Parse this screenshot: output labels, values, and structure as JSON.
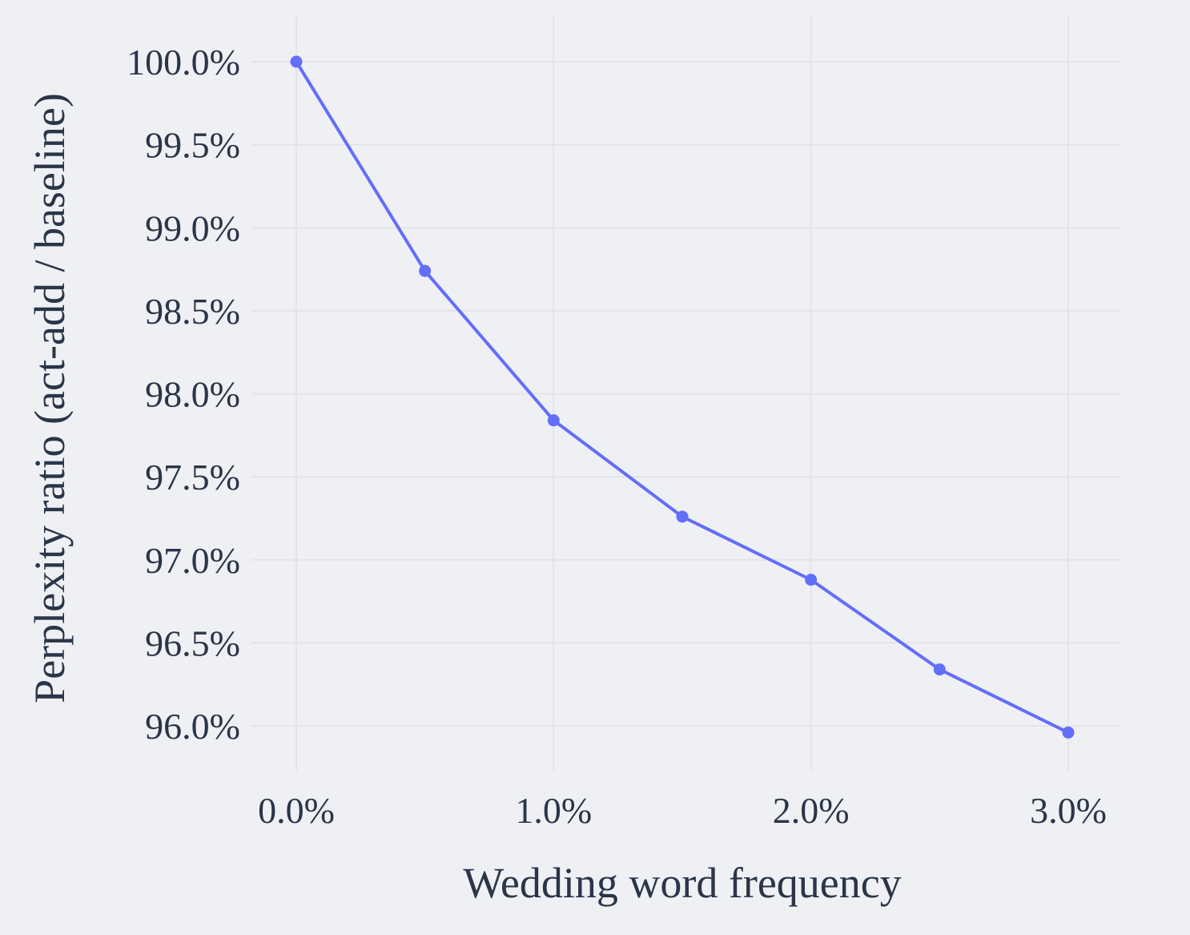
{
  "chart_data": {
    "type": "line",
    "title": "",
    "xlabel": "Wedding word frequency",
    "ylabel": "Perplexity ratio (act-add / baseline)",
    "x": [
      0.0,
      0.5,
      1.0,
      1.5,
      2.0,
      2.5,
      3.0
    ],
    "series": [
      {
        "values": [
          100.0,
          98.74,
          97.84,
          97.26,
          96.88,
          96.34,
          95.96
        ],
        "color": "#636efa",
        "marker": "circle"
      }
    ],
    "x_unit": "%",
    "y_unit": "%",
    "xticks": [
      0.0,
      1.0,
      2.0,
      3.0
    ],
    "xtick_labels": [
      "0.0%",
      "1.0%",
      "2.0%",
      "3.0%"
    ],
    "yticks": [
      96.0,
      96.5,
      97.0,
      97.5,
      98.0,
      98.5,
      99.0,
      99.5,
      100.0
    ],
    "ytick_labels": [
      "96.0%",
      "96.5%",
      "97.0%",
      "97.5%",
      "98.0%",
      "98.5%",
      "99.0%",
      "99.5%",
      "100.0%"
    ],
    "xlim": [
      -0.1,
      3.1
    ],
    "ylim": [
      95.7,
      100.15
    ],
    "grid": true,
    "legend": "none",
    "background_color": "#eff0f4",
    "grid_color": "#e2e4ea",
    "text_color": "#2a3548"
  }
}
